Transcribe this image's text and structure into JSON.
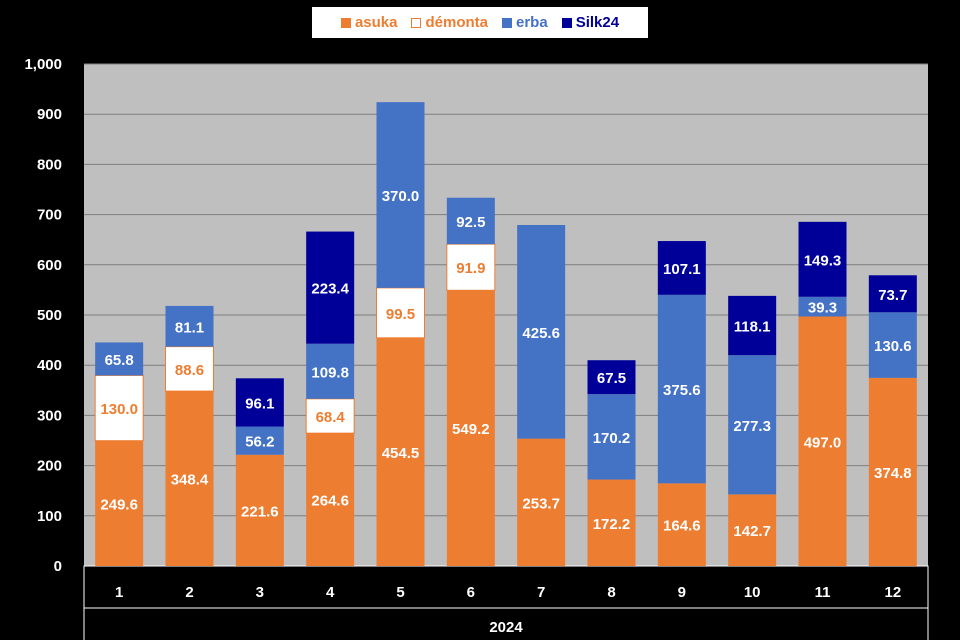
{
  "chart_data": {
    "type": "bar",
    "stacked": true,
    "categories": [
      "1",
      "2",
      "3",
      "4",
      "5",
      "6",
      "7",
      "8",
      "9",
      "10",
      "11",
      "12"
    ],
    "x_group_label": "2024",
    "ylim": [
      0,
      1000
    ],
    "yticks": [
      "0",
      "100",
      "200",
      "300",
      "400",
      "500",
      "600",
      "700",
      "800",
      "900",
      "1,000"
    ],
    "ytick_values": [
      0,
      100,
      200,
      300,
      400,
      500,
      600,
      700,
      800,
      900,
      1000
    ],
    "legend_position": "top-center",
    "grid": true,
    "series": [
      {
        "name": "asuka",
        "color": "#ED7D31",
        "label_color": "#FFFFFF",
        "values": [
          249.6,
          348.4,
          221.6,
          264.6,
          454.5,
          549.2,
          253.7,
          172.2,
          164.6,
          142.7,
          497.0,
          374.8
        ],
        "labels": [
          "249.6",
          "348.4",
          "221.6",
          "264.6",
          "454.5",
          "549.2",
          "253.7",
          "172.2",
          "164.6",
          "142.7",
          "497.0",
          "374.8"
        ]
      },
      {
        "name": "démonta",
        "color": "#FFFFFF",
        "label_color": "#ED7D31",
        "values": [
          130.0,
          88.6,
          0,
          68.4,
          99.5,
          91.9,
          0,
          0,
          0,
          0,
          0,
          0
        ],
        "labels": [
          "130.0",
          "88.6",
          "",
          "68.4",
          "99.5",
          "91.9",
          "",
          "",
          "",
          "",
          "",
          ""
        ]
      },
      {
        "name": "erba",
        "color": "#4472C4",
        "label_color": "#FFFFFF",
        "values": [
          65.8,
          81.1,
          56.2,
          109.8,
          370.0,
          92.5,
          425.6,
          170.2,
          375.6,
          277.3,
          39.3,
          130.6
        ],
        "labels": [
          "65.8",
          "81.1",
          "56.2",
          "109.8",
          "370.0",
          "92.5",
          "425.6",
          "170.2",
          "375.6",
          "277.3",
          "39.3",
          "130.6"
        ]
      },
      {
        "name": "Silk24",
        "color": "#000099",
        "label_color": "#FFFFFF",
        "values": [
          0,
          0,
          96.1,
          223.4,
          0,
          0,
          0,
          67.5,
          107.1,
          118.1,
          149.3,
          73.7
        ],
        "labels": [
          "",
          "",
          "96.1",
          "223.4",
          "",
          "",
          "",
          "67.5",
          "107.1",
          "118.1",
          "149.3",
          "73.7"
        ]
      }
    ]
  }
}
